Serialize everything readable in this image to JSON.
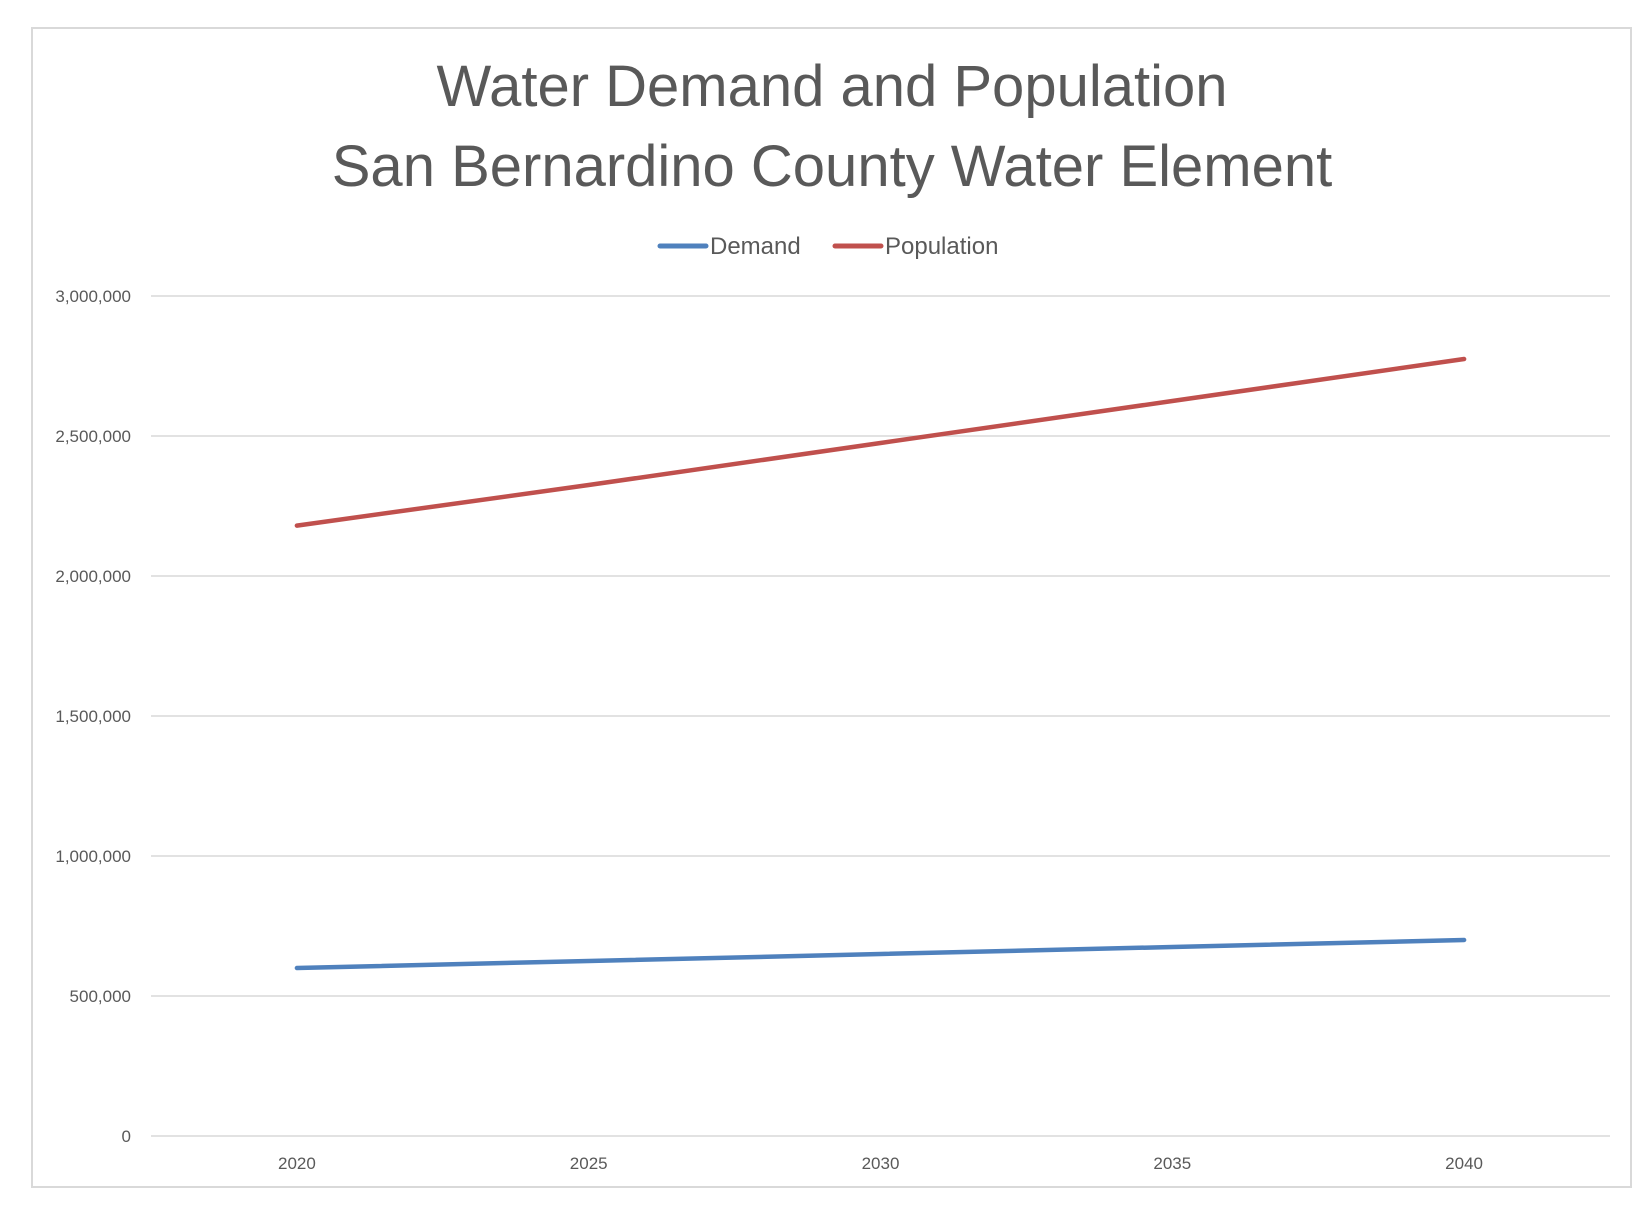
{
  "chart_data": {
    "type": "line",
    "title": [
      "Water Demand and Population",
      "San Bernardino County Water Element"
    ],
    "xlabel": "",
    "ylabel": "",
    "categories": [
      "2020",
      "2025",
      "2030",
      "2035",
      "2040"
    ],
    "ylim": [
      0,
      3000000
    ],
    "yticks": [
      0,
      500000,
      1000000,
      1500000,
      2000000,
      2500000,
      3000000
    ],
    "ytick_labels": [
      "0",
      "500,000",
      "1,000,000",
      "1,500,000",
      "2,000,000",
      "2,500,000",
      "3,000,000"
    ],
    "grid": true,
    "legend_position": "top",
    "series": [
      {
        "name": "Demand",
        "color": "#4f81bd",
        "values": [
          600000,
          625000,
          650000,
          675000,
          700000
        ]
      },
      {
        "name": "Population",
        "color": "#c0504d",
        "values": [
          2180000,
          2325000,
          2475000,
          2625000,
          2775000
        ]
      }
    ]
  }
}
